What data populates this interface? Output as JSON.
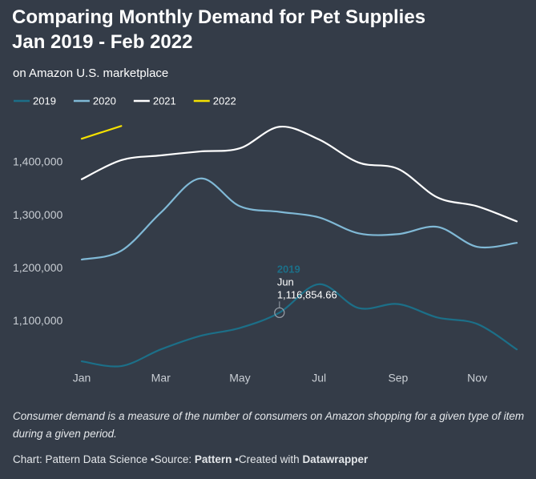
{
  "chart_data": {
    "type": "line",
    "title": [
      "Comparing Monthly Demand for Pet Supplies",
      "Jan 2019 - Feb 2022"
    ],
    "subtitle": "on Amazon U.S. marketplace",
    "categories": [
      "Jan",
      null,
      "Mar",
      null,
      "May",
      null,
      "Jul",
      null,
      "Sep",
      null,
      "Nov",
      null
    ],
    "series": [
      {
        "name": "2019",
        "color": "#1c6f88",
        "values": [
          1025000,
          1016000,
          1047500,
          1073000,
          1088000,
          1116854.66,
          1170500,
          1125500,
          1133000,
          1107500,
          1095500,
          1047500
        ],
        "value_labels": [
          null,
          null,
          null,
          null,
          null,
          "1,116,854.66",
          null,
          null,
          null,
          null,
          null,
          null
        ]
      },
      {
        "name": "2020",
        "color": "#80b9d6",
        "values": [
          1217000,
          1233500,
          1305500,
          1370000,
          1317500,
          1307000,
          1296500,
          1266500,
          1265000,
          1278500,
          1241000,
          1248500
        ]
      },
      {
        "name": "2021",
        "color": "#ffffff",
        "values": [
          1368500,
          1404500,
          1413500,
          1421000,
          1427000,
          1467500,
          1443500,
          1400000,
          1388000,
          1334000,
          1317500,
          1289000
        ]
      },
      {
        "name": "2022",
        "color": "#f5e100",
        "values": [
          1445000,
          1469000,
          null,
          null,
          null,
          null,
          null,
          null,
          null,
          null,
          null,
          null
        ]
      }
    ],
    "tooltip": {
      "series": 0,
      "index": 5,
      "category": "Jun"
    },
    "ylim": [
      1010000,
      1480000
    ],
    "yticks": [
      {
        "value": 1100000,
        "label": "1,100,000"
      },
      {
        "value": 1200000,
        "label": "1,200,000"
      },
      {
        "value": 1300000,
        "label": "1,300,000"
      },
      {
        "value": 1400000,
        "label": "1,400,000"
      }
    ],
    "grid": false,
    "legend": "top-left",
    "notes": "Consumer demand is a measure of the number of consumers on Amazon shopping for a given type of item during a given period.",
    "footer": {
      "chart_label": "Chart: Pattern Data Science",
      "source_label": "Source:",
      "source": "Pattern",
      "credit_label": "Created with",
      "credit": "Datawrapper"
    }
  }
}
